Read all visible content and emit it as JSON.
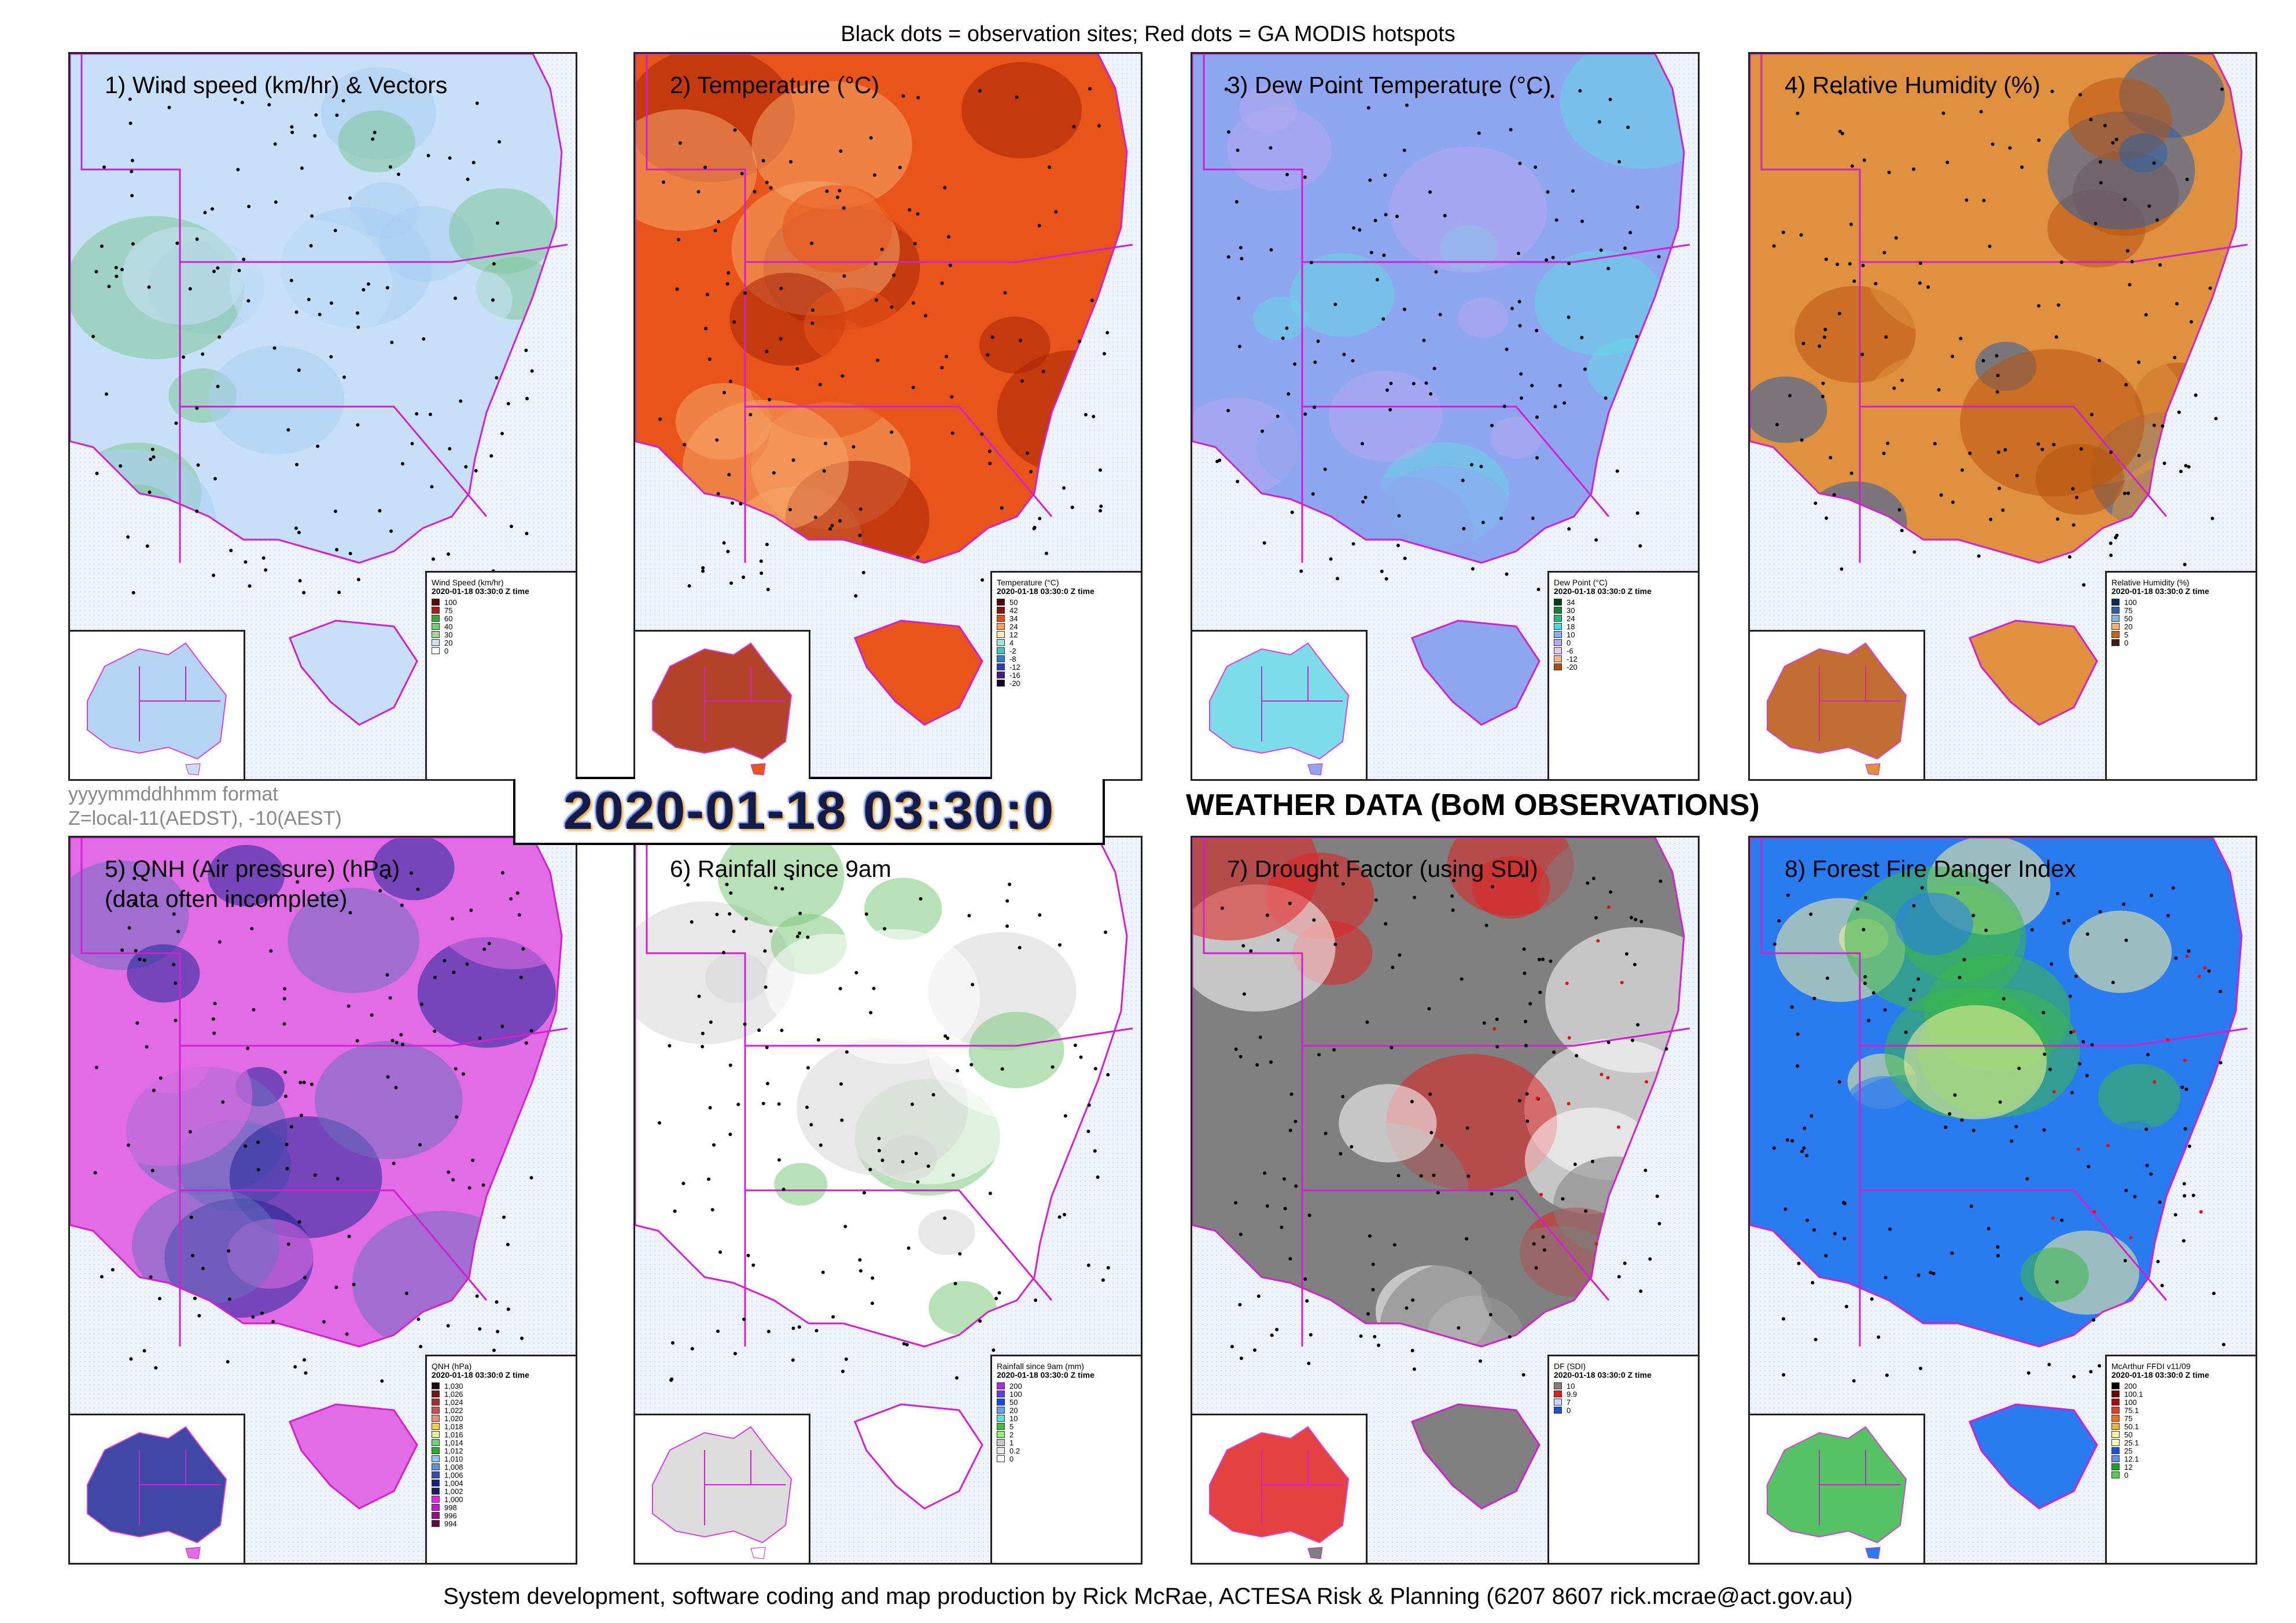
{
  "header": {
    "title": "Black dots = observation sites; Red dots = GA MODIS hotspots"
  },
  "footer": {
    "credit": "System development, software coding and map production by Rick McRae, ACTESA Risk & Planning (6207 8607 rick.mcrae@act.gov.au)"
  },
  "timestamp": {
    "value": "2020-01-18 03:30:0",
    "format_note": "yyyymmddhhmm format",
    "zone_note": "Z=local-11(AEDST), -10(AEST)"
  },
  "section_title": "WEATHER DATA (BoM OBSERVATIONS)",
  "panels": [
    {
      "title": "1) Wind speed (km/hr) & Vectors",
      "legend": {
        "title": "Wind Speed (km/hr)",
        "date": "2020-01-18 03:30:0 Z time",
        "levels": [
          "100",
          "75",
          "60",
          "40",
          "30",
          "20",
          "0"
        ],
        "colors": [
          "#5a0a0a",
          "#b01818",
          "#38a838",
          "#6fd16f",
          "#a6d49a",
          "#c9e3f6",
          "#ffffff"
        ]
      }
    },
    {
      "title": "2) Temperature (°C)",
      "legend": {
        "title": "Temperature (°C)",
        "date": "2020-01-18 03:30:0 Z time",
        "levels": [
          "50",
          "42",
          "34",
          "24",
          "12",
          "4",
          "-2",
          "-8",
          "-12",
          "-16",
          "-20"
        ],
        "colors": [
          "#4a0808",
          "#8a1010",
          "#e0501a",
          "#f5a060",
          "#fde8b8",
          "#9fe4d8",
          "#4fc0c0",
          "#3a7ad0",
          "#2a40a8",
          "#401a80",
          "#100820"
        ]
      }
    },
    {
      "title": "3) Dew Point Temperature (°C)",
      "legend": {
        "title": "Dew Point (°C)",
        "date": "2020-01-18 03:30:0 Z time",
        "levels": [
          "34",
          "30",
          "24",
          "18",
          "10",
          "0",
          "-6",
          "-12",
          "-20"
        ],
        "colors": [
          "#0a3a1a",
          "#1a7a3a",
          "#2ab87a",
          "#4fd8d8",
          "#7fb0f0",
          "#b4a8ee",
          "#e2c8f2",
          "#f3b48a",
          "#b04a1a"
        ]
      }
    },
    {
      "title": "4) Relative Humidity (%)",
      "legend": {
        "title": "Relative Humidity (%)",
        "date": "2020-01-18 03:30:0 Z time",
        "levels": [
          "100",
          "75",
          "50",
          "20",
          "5",
          "0"
        ],
        "colors": [
          "#0a2a50",
          "#2a5ea8",
          "#8ab4d8",
          "#f0b078",
          "#c06418",
          "#4a1a08"
        ]
      }
    },
    {
      "title": "5) QNH (Air pressure) (hPa)\n(data often incomplete)",
      "legend": {
        "title": "QNH (hPa)",
        "date": "2020-01-18 03:30:0 Z time",
        "levels": [
          "1,030",
          "1,026",
          "1,024",
          "1,022",
          "1,020",
          "1,018",
          "1,016",
          "1,014",
          "1,012",
          "1,010",
          "1,008",
          "1,006",
          "1,004",
          "1,002",
          "1,000",
          "998",
          "996",
          "994"
        ],
        "colors": [
          "#200a0a",
          "#6a1a1a",
          "#a03030",
          "#c85050",
          "#e89070",
          "#f0d048",
          "#e0f0a0",
          "#70d070",
          "#30a830",
          "#88c8e8",
          "#6090d8",
          "#2850b8",
          "#10208a",
          "#181c60",
          "#f020f0",
          "#d010d0",
          "#a00880",
          "#600850"
        ]
      }
    },
    {
      "title": "6) Rainfall since 9am",
      "legend": {
        "title": "Rainfall since 9am (mm)",
        "date": "2020-01-18 03:30:0 Z time",
        "levels": [
          "200",
          "100",
          "50",
          "20",
          "10",
          "5",
          "2",
          "1",
          "0.2",
          "0"
        ],
        "colors": [
          "#b030e0",
          "#6040e0",
          "#1050e0",
          "#60a0f0",
          "#60e0d0",
          "#40c040",
          "#90f070",
          "#c8c8c8",
          "#e8e8e8",
          "#ffffff"
        ]
      }
    },
    {
      "title": "7) Drought Factor (using SDI)",
      "legend": {
        "title": "DF (SDI)",
        "date": "2020-01-18 03:30:0 Z time",
        "levels": [
          "10",
          "9.9",
          "7",
          "0"
        ],
        "colors": [
          "#808080",
          "#e02020",
          "#c8d8f0",
          "#2050d0"
        ]
      }
    },
    {
      "title": "8) Forest Fire Danger Index",
      "legend": {
        "title": "McArthur FFDI v11/09",
        "date": "2020-01-18 03:30:0 Z time",
        "levels": [
          "200",
          "100.1",
          "100",
          "75.1",
          "75",
          "50.1",
          "50",
          "25.1",
          "25",
          "12.1",
          "12",
          "0"
        ],
        "colors": [
          "#000000",
          "#700000",
          "#b00000",
          "#e04020",
          "#f07020",
          "#f0b040",
          "#f8f0a0",
          "#ffffc0",
          "#2050e0",
          "#6090f0",
          "#20a020",
          "#50d050"
        ]
      }
    }
  ]
}
